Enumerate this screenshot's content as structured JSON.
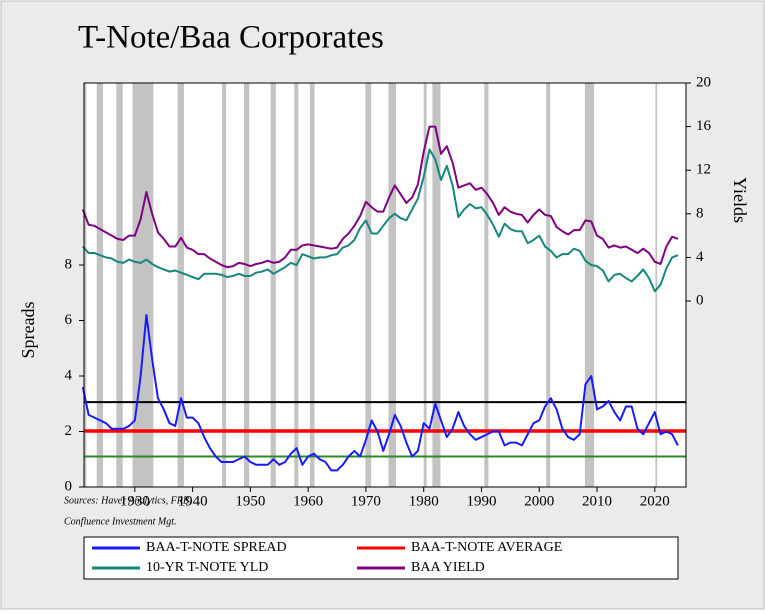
{
  "chart_data": {
    "type": "line",
    "title": "T-Note/Baa Corporates",
    "ylabel": "Spreads",
    "y2label": "Yields",
    "notes": [
      "Sources:  Haver Analytics, FRB,",
      "Confluence Investment Mgt."
    ],
    "xlim": [
      1921.2,
      2025.4
    ],
    "xticks": [
      1930,
      1940,
      1950,
      1960,
      1970,
      1980,
      1990,
      2000,
      2010,
      2020
    ],
    "ylim": [
      0,
      14.56
    ],
    "yticks": [
      0,
      2,
      4,
      6,
      8
    ],
    "y2lim": [
      -17.06,
      20
    ],
    "y2ticks": [
      0,
      4,
      8,
      12,
      16,
      20
    ],
    "recession_color": "#c3c3c3",
    "recessions": [
      [
        1921.2,
        1921.6
      ],
      [
        1923.4,
        1924.5
      ],
      [
        1926.8,
        1927.9
      ],
      [
        1929.6,
        1933.2
      ],
      [
        1937.4,
        1938.5
      ],
      [
        1945.1,
        1945.8
      ],
      [
        1948.9,
        1949.8
      ],
      [
        1953.5,
        1954.4
      ],
      [
        1957.6,
        1958.3
      ],
      [
        1960.3,
        1961.1
      ],
      [
        1969.9,
        1970.9
      ],
      [
        1973.9,
        1975.2
      ],
      [
        1980.0,
        1980.5
      ],
      [
        1981.5,
        1982.9
      ],
      [
        1990.5,
        1991.2
      ],
      [
        2001.2,
        2001.9
      ],
      [
        2007.9,
        2009.5
      ],
      [
        2020.1,
        2020.4
      ]
    ],
    "hlines": [
      {
        "color": "#000000",
        "value": 3.06
      },
      {
        "name": "BAA-T-NOTE AVERAGE",
        "color": "#ff0000",
        "value": 2.02
      },
      {
        "color": "#2a8a2a",
        "value": 1.1
      }
    ],
    "x": [
      1921,
      1922,
      1923,
      1924,
      1925,
      1926,
      1927,
      1928,
      1929,
      1930,
      1931,
      1932,
      1933,
      1934,
      1935,
      1936,
      1937,
      1938,
      1939,
      1940,
      1941,
      1942,
      1943,
      1944,
      1945,
      1946,
      1947,
      1948,
      1949,
      1950,
      1951,
      1952,
      1953,
      1954,
      1955,
      1956,
      1957,
      1958,
      1959,
      1960,
      1961,
      1962,
      1963,
      1964,
      1965,
      1966,
      1967,
      1968,
      1969,
      1970,
      1971,
      1972,
      1973,
      1974,
      1975,
      1976,
      1977,
      1978,
      1979,
      1980,
      1981,
      1982,
      1983,
      1984,
      1985,
      1986,
      1987,
      1988,
      1989,
      1990,
      1991,
      1992,
      1993,
      1994,
      1995,
      1996,
      1997,
      1998,
      1999,
      2000,
      2001,
      2002,
      2003,
      2004,
      2005,
      2006,
      2007,
      2008,
      2009,
      2010,
      2011,
      2012,
      2013,
      2014,
      2015,
      2016,
      2017,
      2018,
      2019,
      2020,
      2021,
      2022,
      2023,
      2024
    ],
    "series": [
      {
        "name": "BAA-T-NOTE SPREAD",
        "color": "#1a1aff",
        "axis": "y",
        "values": [
          3.6,
          2.6,
          2.5,
          2.4,
          2.3,
          2.1,
          2.1,
          2.1,
          2.2,
          2.4,
          4.0,
          6.2,
          4.6,
          3.2,
          2.8,
          2.3,
          2.2,
          3.2,
          2.5,
          2.5,
          2.3,
          1.8,
          1.4,
          1.1,
          0.9,
          0.9,
          0.9,
          1.0,
          1.1,
          0.9,
          0.8,
          0.8,
          0.8,
          1.0,
          0.8,
          0.9,
          1.2,
          1.4,
          0.8,
          1.1,
          1.2,
          1.0,
          0.9,
          0.6,
          0.6,
          0.8,
          1.1,
          1.3,
          1.1,
          1.7,
          2.4,
          2.0,
          1.3,
          1.9,
          2.6,
          2.2,
          1.6,
          1.1,
          1.3,
          2.3,
          2.1,
          3.0,
          2.4,
          1.8,
          2.1,
          2.7,
          2.2,
          1.9,
          1.7,
          1.8,
          1.9,
          2.0,
          2.0,
          1.5,
          1.6,
          1.6,
          1.5,
          1.9,
          2.3,
          2.4,
          2.9,
          3.2,
          2.8,
          2.1,
          1.8,
          1.7,
          1.9,
          3.7,
          4.0,
          2.8,
          2.9,
          3.1,
          2.7,
          2.4,
          2.9,
          2.9,
          2.1,
          1.9,
          2.3,
          2.7,
          1.9,
          2.0,
          1.9,
          1.5
        ]
      },
      {
        "name": "10-YR T-NOTE YLD",
        "color": "#15877d",
        "axis": "y2",
        "values": [
          5.0,
          4.4,
          4.4,
          4.2,
          4.0,
          3.9,
          3.6,
          3.5,
          3.8,
          3.6,
          3.5,
          3.8,
          3.4,
          3.1,
          2.9,
          2.7,
          2.8,
          2.6,
          2.4,
          2.2,
          2.0,
          2.5,
          2.5,
          2.5,
          2.4,
          2.2,
          2.3,
          2.5,
          2.3,
          2.3,
          2.6,
          2.7,
          2.9,
          2.5,
          2.8,
          3.1,
          3.5,
          3.3,
          4.3,
          4.1,
          3.9,
          4.0,
          4.0,
          4.2,
          4.3,
          4.9,
          5.1,
          5.6,
          6.7,
          7.4,
          6.2,
          6.2,
          6.9,
          7.6,
          8.0,
          7.6,
          7.4,
          8.4,
          9.4,
          11.4,
          13.9,
          13.0,
          11.1,
          12.4,
          10.6,
          7.7,
          8.4,
          8.9,
          8.5,
          8.6,
          7.9,
          7.0,
          5.9,
          7.1,
          6.6,
          6.4,
          6.4,
          5.3,
          5.6,
          6.0,
          5.0,
          4.6,
          4.0,
          4.3,
          4.3,
          4.8,
          4.6,
          3.7,
          3.3,
          3.2,
          2.8,
          1.8,
          2.4,
          2.5,
          2.1,
          1.8,
          2.3,
          2.9,
          2.1,
          0.9,
          1.5,
          3.0,
          4.0,
          4.2
        ]
      },
      {
        "name": "BAA YIELD",
        "color": "#800080",
        "axis": "y2",
        "values": [
          8.4,
          7.0,
          6.9,
          6.6,
          6.3,
          6.0,
          5.7,
          5.6,
          6.0,
          6.0,
          7.5,
          10.0,
          8.0,
          6.3,
          5.7,
          5.0,
          5.0,
          5.8,
          4.9,
          4.7,
          4.3,
          4.3,
          3.9,
          3.6,
          3.3,
          3.1,
          3.2,
          3.5,
          3.4,
          3.2,
          3.4,
          3.5,
          3.7,
          3.5,
          3.6,
          4.0,
          4.7,
          4.7,
          5.1,
          5.2,
          5.1,
          5.0,
          4.9,
          4.8,
          4.9,
          5.7,
          6.2,
          6.9,
          7.8,
          9.1,
          8.6,
          8.2,
          8.2,
          9.5,
          10.6,
          9.8,
          9.0,
          9.5,
          10.7,
          13.7,
          16.0,
          16.0,
          13.5,
          14.2,
          12.7,
          10.4,
          10.6,
          10.8,
          10.2,
          10.4,
          9.8,
          9.0,
          7.9,
          8.6,
          8.2,
          8.0,
          7.9,
          7.2,
          7.9,
          8.4,
          7.9,
          7.8,
          6.8,
          6.4,
          6.1,
          6.5,
          6.5,
          7.4,
          7.3,
          6.0,
          5.7,
          4.9,
          5.1,
          4.9,
          5.0,
          4.7,
          4.4,
          4.8,
          4.4,
          3.6,
          3.4,
          5.0,
          5.9,
          5.7
        ]
      }
    ]
  }
}
